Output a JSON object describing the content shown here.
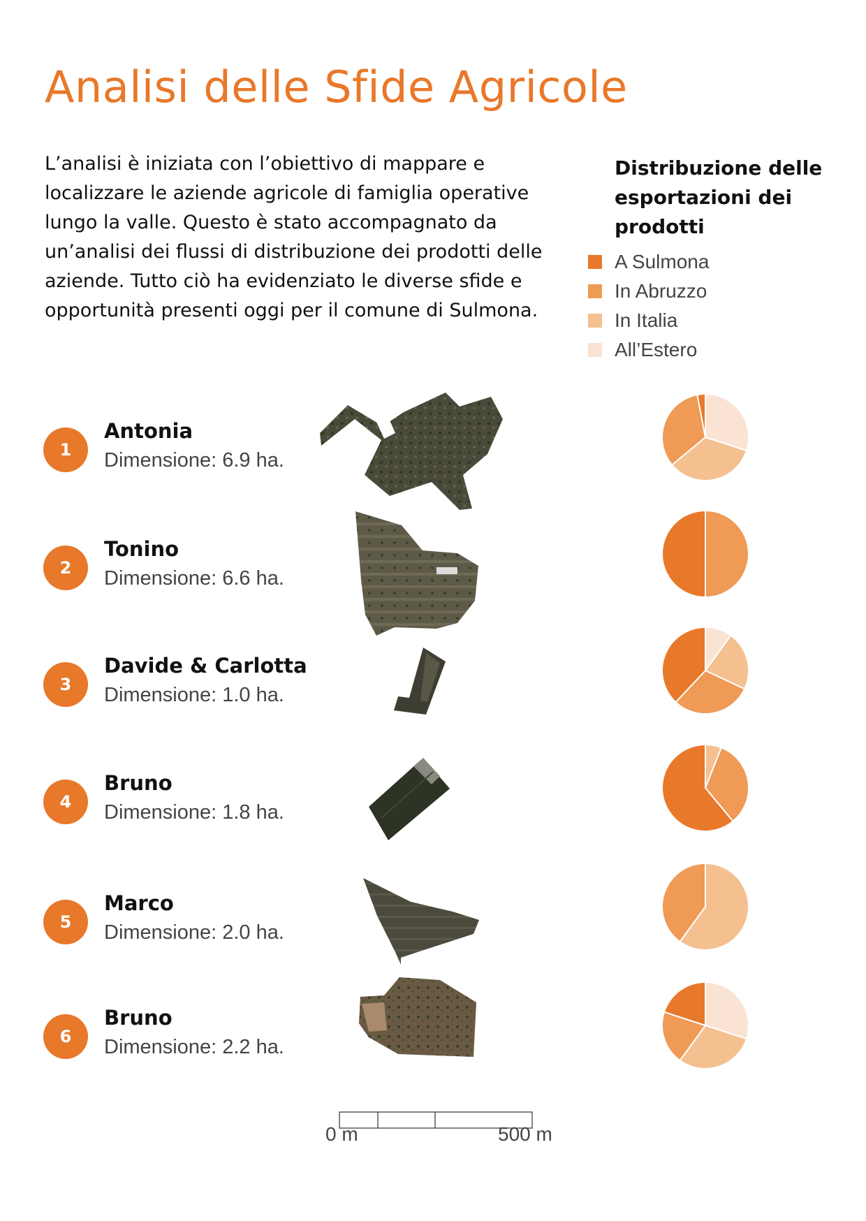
{
  "title": "Analisi delle Sfide Agricole",
  "intro": "L’analisi è iniziata con l’obiettivo di mappare e localizzare le aziende agricole di famiglia operative lungo la valle. Questo è stato accompagnato da un’analisi dei flussi di distribuzione dei prodotti delle aziende. Tutto ciò ha evidenziato le diverse sfide e opportunità presenti oggi per il comune di Sulmona.",
  "legend": {
    "title": "Distribuzione delle esportazioni dei prodotti",
    "items": [
      {
        "label": "A Sulmona",
        "color": "#e8782a"
      },
      {
        "label": "In Abruzzo",
        "color": "#ef9a55"
      },
      {
        "label": "In Italia",
        "color": "#f4c08f"
      },
      {
        "label": "All’Estero",
        "color": "#fbe3d3"
      }
    ]
  },
  "farms": [
    {
      "number": "1",
      "name": "Antonia",
      "size": "Dimensione: 6.9 ha."
    },
    {
      "number": "2",
      "name": "Tonino",
      "size": "Dimensione: 6.6 ha."
    },
    {
      "number": "3",
      "name": "Davide & Carlotta",
      "size": "Dimensione: 1.0 ha."
    },
    {
      "number": "4",
      "name": "Bruno",
      "size": "Dimensione: 1.8 ha."
    },
    {
      "number": "5",
      "name": "Marco",
      "size": "Dimensione: 2.0 ha."
    },
    {
      "number": "6",
      "name": "Bruno",
      "size": "Dimensione: 2.2 ha."
    }
  ],
  "scale": {
    "start_label": "0 m",
    "end_label": "500 m"
  },
  "chart_data": [
    {
      "type": "pie",
      "farm": "Antonia",
      "categories": [
        "A Sulmona",
        "In Abruzzo",
        "In Italia",
        "All’Estero"
      ],
      "values": [
        3,
        33,
        34,
        30
      ]
    },
    {
      "type": "pie",
      "farm": "Tonino",
      "categories": [
        "A Sulmona",
        "In Abruzzo",
        "In Italia",
        "All’Estero"
      ],
      "values": [
        50,
        50,
        0,
        0
      ]
    },
    {
      "type": "pie",
      "farm": "Davide & Carlotta",
      "categories": [
        "A Sulmona",
        "In Abruzzo",
        "In Italia",
        "All’Estero"
      ],
      "values": [
        38,
        30,
        22,
        10
      ]
    },
    {
      "type": "pie",
      "farm": "Bruno",
      "categories": [
        "A Sulmona",
        "In Abruzzo",
        "In Italia",
        "All’Estero"
      ],
      "values": [
        61,
        33,
        6,
        0
      ]
    },
    {
      "type": "pie",
      "farm": "Marco",
      "categories": [
        "A Sulmona",
        "In Abruzzo",
        "In Italia",
        "All’Estero"
      ],
      "values": [
        0,
        40,
        60,
        0
      ]
    },
    {
      "type": "pie",
      "farm": "Bruno",
      "categories": [
        "A Sulmona",
        "In Abruzzo",
        "In Italia",
        "All’Estero"
      ],
      "values": [
        20,
        20,
        30,
        30
      ]
    }
  ]
}
